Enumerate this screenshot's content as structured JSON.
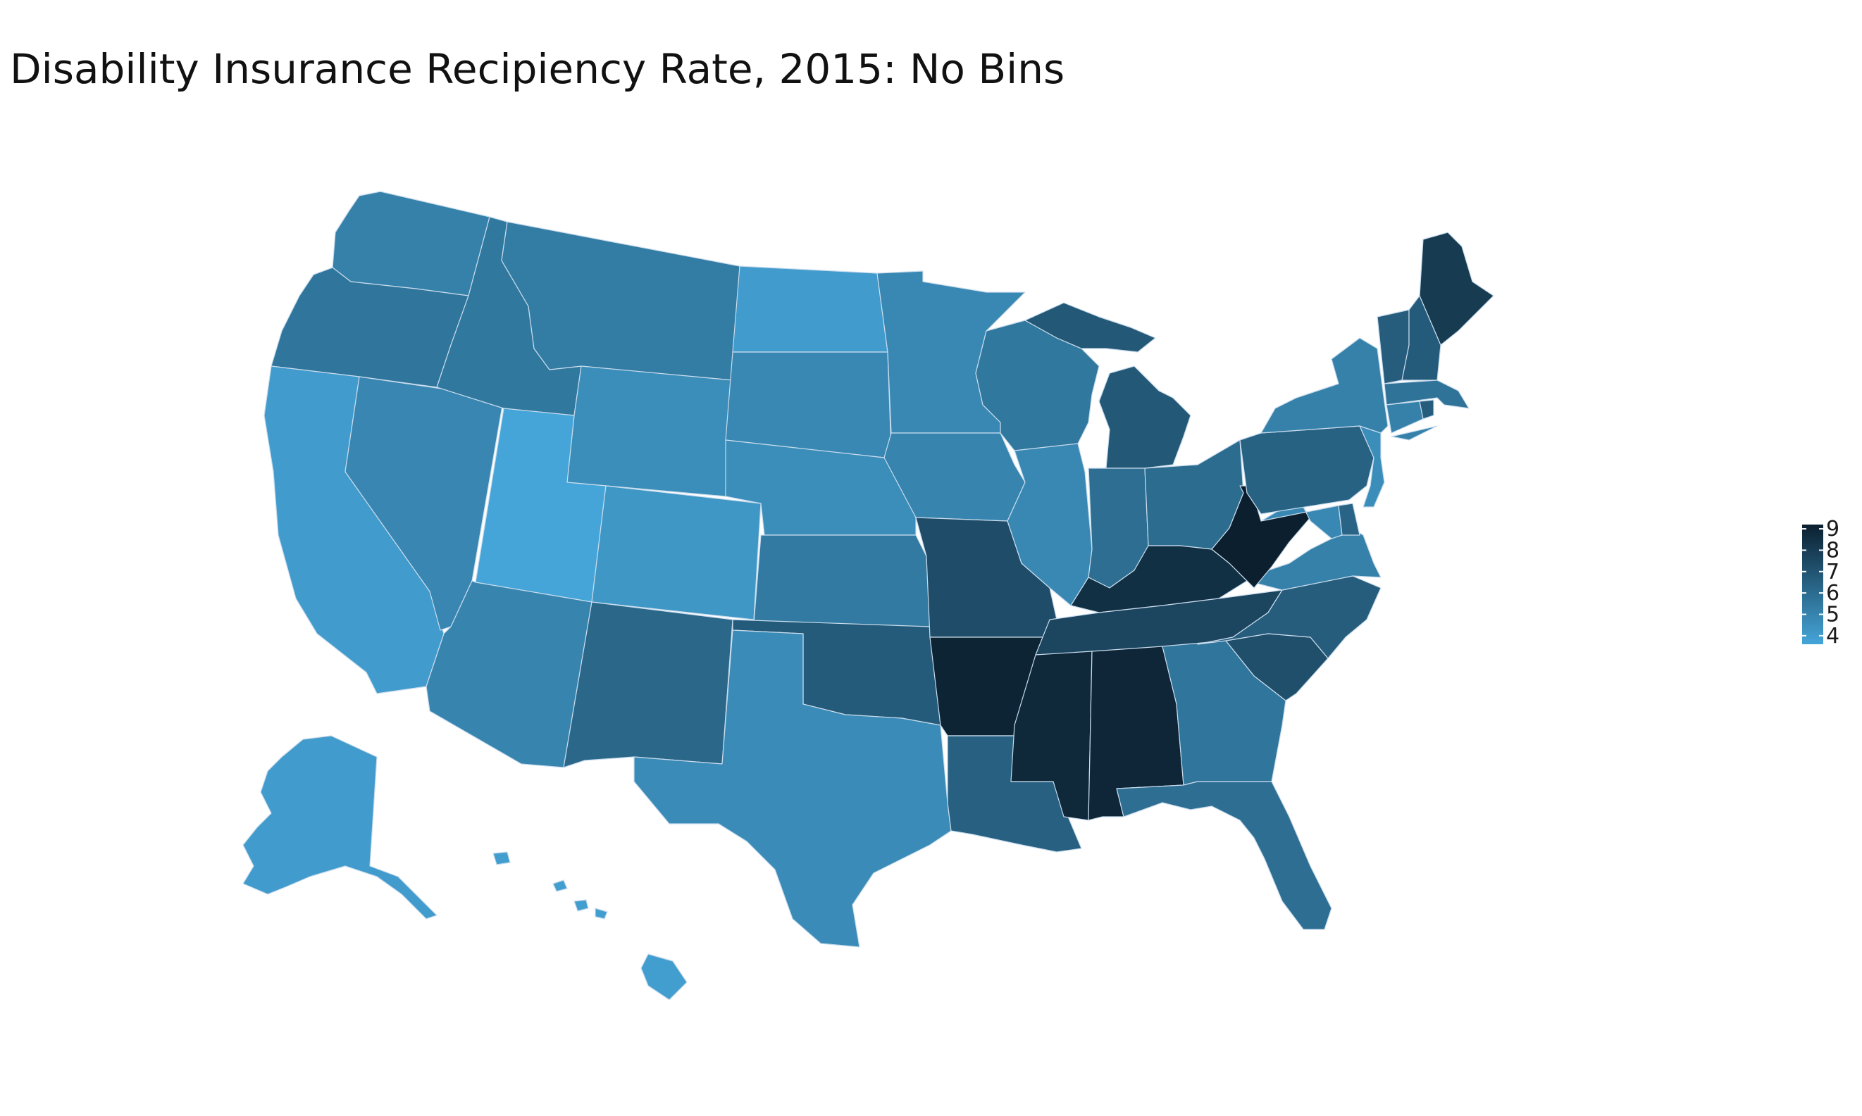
{
  "title": "Disability Insurance Recipiency Rate, 2015: No Bins",
  "colors": {
    "low": "#45a5d8",
    "high": "#0b1f2e",
    "border": "#c9dced"
  },
  "legend": {
    "min": 3.6,
    "max": 9.2,
    "ticks": [
      "4",
      "5",
      "6",
      "7",
      "8",
      "9"
    ]
  },
  "state_values": {
    "WA": 5.1,
    "OR": 5.6,
    "CA": 4.0,
    "NV": 4.9,
    "ID": 5.5,
    "MT": 5.3,
    "WY": 4.6,
    "UT": 3.6,
    "AZ": 5.0,
    "CO": 4.2,
    "NM": 6.2,
    "ND": 4.0,
    "SD": 4.8,
    "NE": 4.6,
    "KS": 5.4,
    "OK": 6.7,
    "TX": 4.7,
    "MN": 4.8,
    "IA": 5.0,
    "MO": 7.3,
    "AR": 9.0,
    "LA": 6.5,
    "WI": 5.5,
    "IL": 4.8,
    "MI": 6.8,
    "IN": 5.9,
    "OH": 6.0,
    "KY": 8.5,
    "TN": 7.6,
    "MS": 8.8,
    "AL": 8.9,
    "GA": 5.6,
    "FL": 5.9,
    "SC": 7.2,
    "NC": 6.6,
    "VA": 5.1,
    "WV": 9.2,
    "PA": 6.4,
    "NY": 5.1,
    "VT": 6.6,
    "NH": 6.7,
    "ME": 8.0,
    "MA": 5.7,
    "CT": 5.1,
    "RI": 6.6,
    "NJ": 4.6,
    "DE": 6.3,
    "MD": 4.8,
    "AK": 4.0,
    "HI": 3.9
  }
}
